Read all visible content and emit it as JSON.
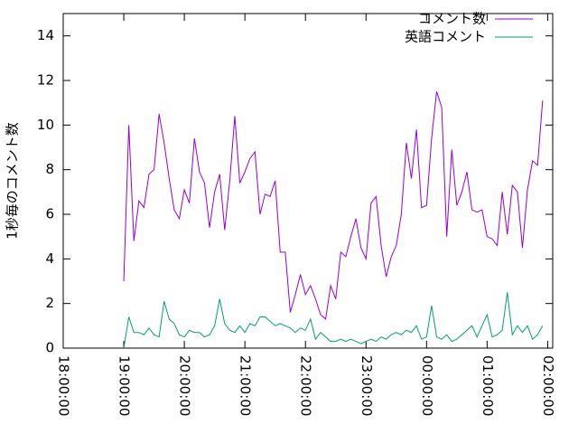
{
  "chart_data": {
    "type": "line",
    "y_label": "1秒毎のコメント数",
    "x": [
      "19:00:00",
      "19:05:00",
      "19:10:00",
      "19:15:00",
      "19:20:00",
      "19:25:00",
      "19:30:00",
      "19:35:00",
      "19:40:00",
      "19:45:00",
      "19:50:00",
      "19:55:00",
      "20:00:00",
      "20:05:00",
      "20:10:00",
      "20:15:00",
      "20:20:00",
      "20:25:00",
      "20:30:00",
      "20:35:00",
      "20:40:00",
      "20:45:00",
      "20:50:00",
      "20:55:00",
      "21:00:00",
      "21:05:00",
      "21:10:00",
      "21:15:00",
      "21:20:00",
      "21:25:00",
      "21:30:00",
      "21:35:00",
      "21:40:00",
      "21:45:00",
      "21:50:00",
      "21:55:00",
      "22:00:00",
      "22:05:00",
      "22:10:00",
      "22:15:00",
      "22:20:00",
      "22:25:00",
      "22:30:00",
      "22:35:00",
      "22:40:00",
      "22:45:00",
      "22:50:00",
      "22:55:00",
      "23:00:00",
      "23:05:00",
      "23:10:00",
      "23:15:00",
      "23:20:00",
      "23:25:00",
      "23:30:00",
      "23:35:00",
      "23:40:00",
      "23:45:00",
      "23:50:00",
      "23:55:00",
      "00:00:00",
      "00:05:00",
      "00:10:00",
      "00:15:00",
      "00:20:00",
      "00:25:00",
      "00:30:00",
      "00:35:00",
      "00:40:00",
      "00:45:00",
      "00:50:00",
      "00:55:00",
      "01:00:00",
      "01:05:00",
      "01:10:00",
      "01:15:00",
      "01:20:00",
      "01:25:00",
      "01:30:00",
      "01:35:00",
      "01:40:00",
      "01:45:00",
      "01:50:00",
      "01:55:00"
    ],
    "series": [
      {
        "name": "コメント数",
        "color": "#9400d3",
        "values": [
          3.0,
          10.0,
          4.8,
          6.6,
          6.3,
          7.8,
          8.0,
          10.5,
          9.2,
          7.6,
          6.2,
          5.8,
          7.1,
          6.5,
          9.4,
          7.9,
          7.4,
          5.4,
          7.0,
          7.8,
          5.3,
          7.5,
          10.4,
          7.4,
          7.9,
          8.5,
          8.8,
          6.0,
          6.9,
          6.8,
          7.5,
          4.3,
          4.3,
          1.6,
          2.4,
          3.3,
          2.4,
          2.8,
          2.2,
          1.5,
          1.3,
          2.8,
          2.2,
          4.3,
          4.1,
          5.0,
          5.8,
          4.5,
          4.0,
          6.5,
          6.8,
          4.6,
          3.2,
          4.1,
          4.6,
          6.0,
          9.2,
          7.6,
          9.8,
          6.3,
          6.4,
          9.4,
          11.5,
          10.8,
          5.0,
          8.9,
          6.4,
          7.0,
          7.9,
          6.2,
          6.1,
          6.2,
          5.0,
          4.9,
          4.6,
          7.0,
          5.1,
          7.3,
          7.0,
          4.5,
          7.1,
          8.4,
          8.2,
          11.1
        ]
      },
      {
        "name": "英語コメント",
        "color": "#009e73",
        "values": [
          0.0,
          1.4,
          0.7,
          0.7,
          0.6,
          0.9,
          0.6,
          0.5,
          2.1,
          1.3,
          1.1,
          0.6,
          0.5,
          0.8,
          0.7,
          0.7,
          0.5,
          0.6,
          1.0,
          2.2,
          1.1,
          0.8,
          0.7,
          1.0,
          0.7,
          1.1,
          1.0,
          1.4,
          1.4,
          1.2,
          1.0,
          1.1,
          1.0,
          0.9,
          0.7,
          0.9,
          0.8,
          1.3,
          0.4,
          0.7,
          0.5,
          0.3,
          0.3,
          0.4,
          0.3,
          0.4,
          0.3,
          0.2,
          0.3,
          0.4,
          0.3,
          0.5,
          0.4,
          0.6,
          0.7,
          0.6,
          0.8,
          0.7,
          1.0,
          0.4,
          0.5,
          1.9,
          0.5,
          0.4,
          0.6,
          0.3,
          0.4,
          0.6,
          0.8,
          1.0,
          0.5,
          1.0,
          1.5,
          0.5,
          0.6,
          0.8,
          2.5,
          0.6,
          1.0,
          0.7,
          1.0,
          0.4,
          0.6,
          1.0
        ]
      }
    ],
    "xlim": [
      "18:00:00",
      "02:05:00"
    ],
    "xticks": [
      "18:00:00",
      "19:00:00",
      "20:00:00",
      "21:00:00",
      "22:00:00",
      "23:00:00",
      "00:00:00",
      "01:00:00",
      "02:00:00"
    ],
    "ylim": [
      0,
      15
    ],
    "yticks": [
      0,
      2,
      4,
      6,
      8,
      10,
      12,
      14
    ],
    "legend": "top-right"
  }
}
